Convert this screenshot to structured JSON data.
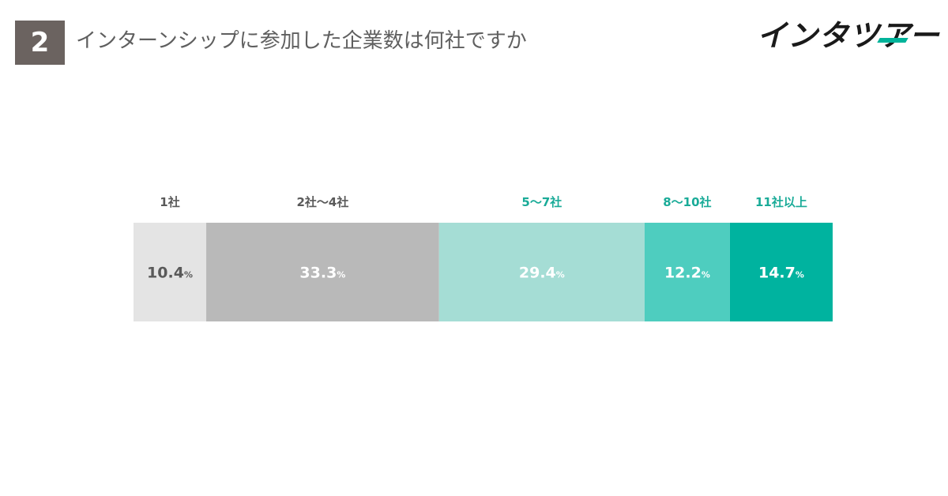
{
  "header": {
    "question_number": "2",
    "title": "インターンシップに参加した企業数は何社ですか",
    "logo_text": "インタツアー",
    "accent_color": "#00b39a"
  },
  "chart_data": {
    "type": "bar",
    "orientation": "horizontal-stacked",
    "unit": "%",
    "categories": [
      "1社",
      "2社〜4社",
      "5〜7社",
      "8〜10社",
      "11社以上"
    ],
    "values": [
      10.4,
      33.3,
      29.4,
      12.2,
      14.7
    ],
    "value_labels": [
      "10.4",
      "33.3",
      "29.4",
      "12.2",
      "14.7"
    ],
    "colors": [
      "#e4e4e4",
      "#b9b9b9",
      "#a5ddd5",
      "#4ecdbf",
      "#00b39f"
    ],
    "category_label_colors": [
      "#595959",
      "#595959",
      "#1aab98",
      "#1aab98",
      "#1aab98"
    ],
    "value_label_colors": [
      "#595959",
      "#ffffff",
      "#ffffff",
      "#ffffff",
      "#ffffff"
    ],
    "title": "",
    "xlabel": "",
    "ylabel": "",
    "legend": "none",
    "grid": false
  }
}
